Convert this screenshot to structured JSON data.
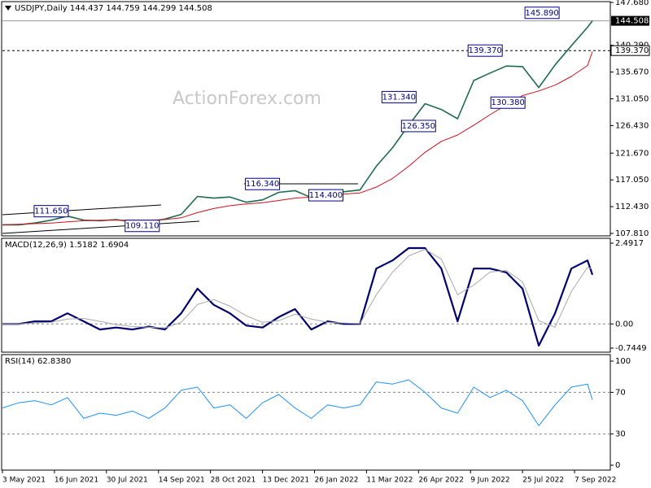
{
  "chart_data": [
    {
      "type": "line",
      "title": "USDJPY,Daily 144.437 144.759 144.299 144.508",
      "watermark": "ActionForex.com",
      "x": [
        "2021-05-03",
        "2021-05-17",
        "2021-05-31",
        "2021-06-14",
        "2021-06-28",
        "2021-07-12",
        "2021-07-26",
        "2021-08-09",
        "2021-08-23",
        "2021-09-06",
        "2021-09-20",
        "2021-10-04",
        "2021-10-18",
        "2021-11-01",
        "2021-11-15",
        "2021-11-29",
        "2021-12-13",
        "2021-12-27",
        "2022-01-10",
        "2022-01-24",
        "2022-02-07",
        "2022-02-21",
        "2022-03-07",
        "2022-03-21",
        "2022-04-04",
        "2022-04-18",
        "2022-05-02",
        "2022-05-16",
        "2022-05-30",
        "2022-06-13",
        "2022-06-27",
        "2022-07-11",
        "2022-07-25",
        "2022-08-08",
        "2022-08-22",
        "2022-09-05",
        "2022-09-19",
        "2022-09-22"
      ],
      "xlim": [
        "2021-05-03",
        "2022-10-07"
      ],
      "xticks": [
        {
          "value": "2021-05-03",
          "label": "3 May 2021"
        },
        {
          "value": "2021-06-16",
          "label": "16 Jun 2021"
        },
        {
          "value": "2021-07-30",
          "label": "30 Jul 2021"
        },
        {
          "value": "2021-09-14",
          "label": "14 Sep 2021"
        },
        {
          "value": "2021-10-28",
          "label": "28 Oct 2021"
        },
        {
          "value": "2021-12-13",
          "label": "13 Dec 2021"
        },
        {
          "value": "2022-01-26",
          "label": "26 Jan 2022"
        },
        {
          "value": "2022-03-11",
          "label": "11 Mar 2022"
        },
        {
          "value": "2022-04-26",
          "label": "26 Apr 2022"
        },
        {
          "value": "2022-06-09",
          "label": "9 Jun 2022"
        },
        {
          "value": "2022-07-25",
          "label": "25 Jul 2022"
        },
        {
          "value": "2022-09-07",
          "label": "7 Sep 2022"
        }
      ],
      "series": [
        {
          "color": "#1f6b4f",
          "values": [
            109.3,
            109.3,
            109.6,
            110.1,
            110.8,
            110.1,
            110.0,
            110.2,
            109.8,
            109.8,
            110.3,
            111.1,
            114.2,
            113.9,
            114.1,
            113.2,
            113.6,
            114.9,
            115.2,
            114.0,
            115.2,
            115.0,
            115.3,
            119.4,
            122.6,
            126.5,
            130.2,
            129.2,
            127.6,
            134.2,
            135.5,
            136.7,
            136.6,
            133.0,
            136.9,
            140.2,
            143.4,
            144.508
          ]
        },
        {
          "color": "#d0101c",
          "values": [
            109.3,
            109.4,
            109.5,
            109.6,
            109.8,
            110.0,
            110.1,
            110.1,
            110.1,
            110.1,
            110.2,
            110.5,
            111.4,
            112.1,
            112.6,
            112.9,
            113.1,
            113.5,
            113.9,
            114.1,
            114.4,
            114.6,
            114.8,
            115.8,
            117.3,
            119.4,
            121.8,
            123.7,
            124.8,
            126.5,
            128.3,
            130.0,
            131.6,
            132.4,
            133.4,
            134.9,
            136.8,
            139.2
          ]
        }
      ],
      "ylim": [
        107.81,
        147.68
      ],
      "yticks": [
        {
          "value": 107.81,
          "label": "107.810"
        },
        {
          "value": 112.43,
          "label": "112.430"
        },
        {
          "value": 117.05,
          "label": "117.050"
        },
        {
          "value": 121.67,
          "label": "121.670"
        },
        {
          "value": 126.43,
          "label": "126.430"
        },
        {
          "value": 131.05,
          "label": "131.050"
        },
        {
          "value": 135.67,
          "label": "135.670"
        },
        {
          "value": 140.29,
          "label": "140.290"
        },
        {
          "value": 147.68,
          "label": "147.680"
        }
      ],
      "current_price": {
        "value": 144.508,
        "label": "144.508"
      },
      "hline": {
        "value": 139.37,
        "label": "139.370"
      },
      "annotations": [
        {
          "x": "2021-06-14",
          "y": 111.65,
          "label": "111.650"
        },
        {
          "x": "2021-08-31",
          "y": 109.11,
          "label": "109.110"
        },
        {
          "x": "2021-12-13",
          "y": 116.34,
          "label": "116.340"
        },
        {
          "x": "2022-02-04",
          "y": 114.4,
          "label": "114.400"
        },
        {
          "x": "2022-04-08",
          "y": 131.34,
          "label": "131.340"
        },
        {
          "x": "2022-04-26",
          "y": 126.35,
          "label": "126.350"
        },
        {
          "x": "2022-06-22",
          "y": 139.37,
          "label": "139.370"
        },
        {
          "x": "2022-07-12",
          "y": 130.38,
          "label": "130.380"
        },
        {
          "x": "2022-08-10",
          "y": 145.89,
          "label": "145.890"
        }
      ]
    },
    {
      "type": "line",
      "title": "MACD(12,26,9) 1.5182 1.6904",
      "series": [
        {
          "color": "#00006e",
          "values": [
            0,
            0,
            0.08,
            0.08,
            0.33,
            0.08,
            -0.17,
            -0.11,
            -0.17,
            -0.08,
            -0.17,
            0.33,
            1.09,
            0.59,
            0.33,
            -0.05,
            -0.11,
            0.21,
            0.46,
            -0.17,
            0.08,
            0,
            0,
            1.71,
            1.96,
            2.34,
            2.34,
            1.71,
            0.08,
            1.71,
            1.71,
            1.59,
            1.09,
            -0.67,
            0.33,
            1.71,
            1.96,
            1.5182
          ]
        },
        {
          "color": "#a8a8a8",
          "values": [
            0,
            0,
            0.03,
            0.05,
            0.15,
            0.17,
            0.08,
            -0.02,
            -0.08,
            -0.1,
            -0.12,
            0.05,
            0.6,
            0.75,
            0.55,
            0.25,
            0.05,
            0.1,
            0.3,
            0.15,
            0.05,
            0.03,
            0.01,
            0.9,
            1.6,
            2.1,
            2.3,
            2.0,
            0.9,
            1.2,
            1.6,
            1.65,
            1.3,
            0.1,
            -0.1,
            1.0,
            1.75,
            1.6904
          ]
        }
      ],
      "ylim": [
        -0.7449,
        2.4917
      ],
      "yticks": [
        2.4917,
        {
          "value": 0,
          "label": "0.00"
        },
        -0.7449
      ],
      "levels": [
        0
      ]
    },
    {
      "type": "line",
      "title": "RSI(14) 62.8380",
      "series": [
        {
          "color": "#1e90ff",
          "values": [
            55,
            60,
            62,
            58,
            65,
            45,
            50,
            48,
            52,
            45,
            55,
            72,
            75,
            55,
            58,
            45,
            60,
            68,
            55,
            45,
            58,
            55,
            58,
            80,
            78,
            82,
            70,
            55,
            50,
            75,
            65,
            72,
            62,
            38,
            58,
            75,
            78,
            62.838
          ]
        }
      ],
      "ylim": [
        0,
        100
      ],
      "yticks": [
        100,
        70,
        30,
        0
      ],
      "levels": [
        70,
        30
      ]
    }
  ]
}
